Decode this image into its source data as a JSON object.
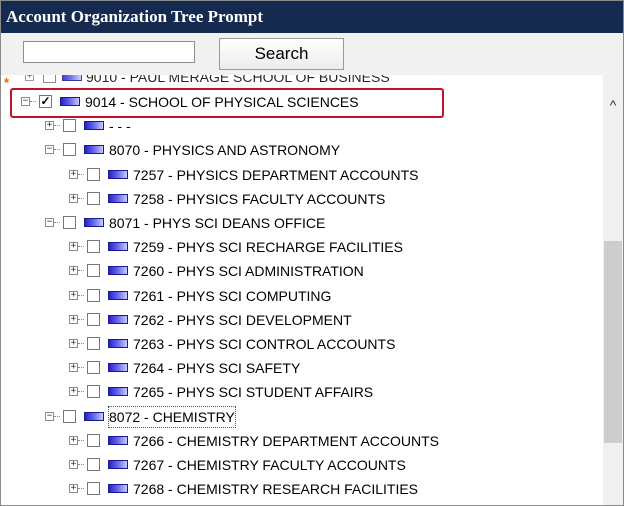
{
  "window": {
    "title": "Account Organization Tree Prompt"
  },
  "search": {
    "value": "",
    "button_label": "Search"
  },
  "tree": {
    "required_marker": "*",
    "clipped_row": "9010 - PAUL MERAGE SCHOOL OF BUSINESS",
    "rows": [
      {
        "label": "9014 - SCHOOL OF PHYSICAL SCIENCES",
        "level": 0,
        "expander": "−",
        "checked": true,
        "highlighted": true
      },
      {
        "label": "- - -",
        "level": 1,
        "expander": "+",
        "checked": false
      },
      {
        "label": "8070 - PHYSICS AND ASTRONOMY",
        "level": 1,
        "expander": "−",
        "checked": false
      },
      {
        "label": "7257 - PHYSICS DEPARTMENT ACCOUNTS",
        "level": 2,
        "expander": "+",
        "checked": false
      },
      {
        "label": "7258 - PHYSICS FACULTY ACCOUNTS",
        "level": 2,
        "expander": "+",
        "checked": false
      },
      {
        "label": "8071 - PHYS SCI DEANS OFFICE",
        "level": 1,
        "expander": "−",
        "checked": false
      },
      {
        "label": "7259 - PHYS SCI RECHARGE FACILITIES",
        "level": 2,
        "expander": "+",
        "checked": false
      },
      {
        "label": "7260 - PHYS SCI ADMINISTRATION",
        "level": 2,
        "expander": "+",
        "checked": false
      },
      {
        "label": "7261 - PHYS SCI COMPUTING",
        "level": 2,
        "expander": "+",
        "checked": false
      },
      {
        "label": "7262 - PHYS SCI DEVELOPMENT",
        "level": 2,
        "expander": "+",
        "checked": false
      },
      {
        "label": "7263 - PHYS SCI CONTROL ACCOUNTS",
        "level": 2,
        "expander": "+",
        "checked": false
      },
      {
        "label": "7264 - PHYS SCI SAFETY",
        "level": 2,
        "expander": "+",
        "checked": false
      },
      {
        "label": "7265 - PHYS SCI STUDENT AFFAIRS",
        "level": 2,
        "expander": "+",
        "checked": false
      },
      {
        "label": "8072 - CHEMISTRY",
        "level": 1,
        "expander": "−",
        "checked": false,
        "focused": true
      },
      {
        "label": "7266 - CHEMISTRY DEPARTMENT ACCOUNTS",
        "level": 2,
        "expander": "+",
        "checked": false
      },
      {
        "label": "7267 - CHEMISTRY FACULTY ACCOUNTS",
        "level": 2,
        "expander": "+",
        "checked": false
      },
      {
        "label": "7268 - CHEMISTRY RESEARCH FACILITIES",
        "level": 2,
        "expander": "+",
        "checked": false
      }
    ]
  },
  "scrollbar": {
    "up_arrow": "^"
  },
  "colors": {
    "title_bar": "#142a4f",
    "highlight_border": "#c0122e",
    "folder_icon": "#2424c9",
    "required_marker": "#e36b00"
  }
}
